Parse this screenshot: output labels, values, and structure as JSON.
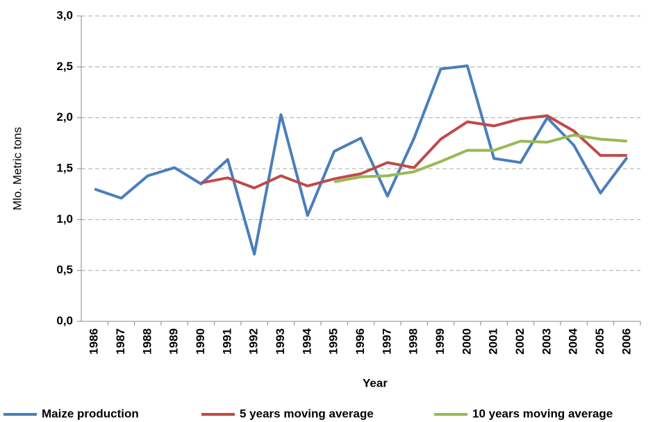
{
  "chart_data": {
    "type": "line",
    "x_label": "Year",
    "y_label": "Mlo. Metric tons",
    "categories": [
      "1986",
      "1987",
      "1988",
      "1989",
      "1990",
      "1991",
      "1992",
      "1993",
      "1994",
      "1995",
      "1996",
      "1997",
      "1998",
      "1999",
      "2000",
      "2001",
      "2002",
      "2003",
      "2004",
      "2005",
      "2006"
    ],
    "series": [
      {
        "name": "Maize production",
        "color": "#4a7ebb",
        "values": [
          1.3,
          1.21,
          1.43,
          1.51,
          1.35,
          1.59,
          0.66,
          2.03,
          1.04,
          1.67,
          1.8,
          1.23,
          1.8,
          2.48,
          2.51,
          1.6,
          1.56,
          2.0,
          1.73,
          1.26,
          1.61
        ]
      },
      {
        "name": "5 years moving average",
        "color": "#be4b48",
        "values": [
          null,
          null,
          null,
          null,
          1.36,
          1.41,
          1.31,
          1.43,
          1.33,
          1.4,
          1.45,
          1.56,
          1.51,
          1.79,
          1.96,
          1.92,
          1.99,
          2.02,
          1.87,
          1.63,
          1.63
        ]
      },
      {
        "name": "10 years moving average",
        "color": "#98b954",
        "values": [
          null,
          null,
          null,
          null,
          null,
          null,
          null,
          null,
          null,
          1.37,
          1.42,
          1.43,
          1.47,
          1.57,
          1.68,
          1.68,
          1.77,
          1.76,
          1.83,
          1.79,
          1.77
        ]
      }
    ],
    "ylim": [
      0,
      3
    ],
    "yticks": [
      {
        "value": 0,
        "label": "0,0"
      },
      {
        "value": 0.5,
        "label": "0,5"
      },
      {
        "value": 1,
        "label": "1,0"
      },
      {
        "value": 1.5,
        "label": "1,5"
      },
      {
        "value": 2,
        "label": "2,0"
      },
      {
        "value": 2.5,
        "label": "2,5"
      },
      {
        "value": 3,
        "label": "3,0"
      }
    ],
    "grid": true,
    "legend": "bottom"
  }
}
